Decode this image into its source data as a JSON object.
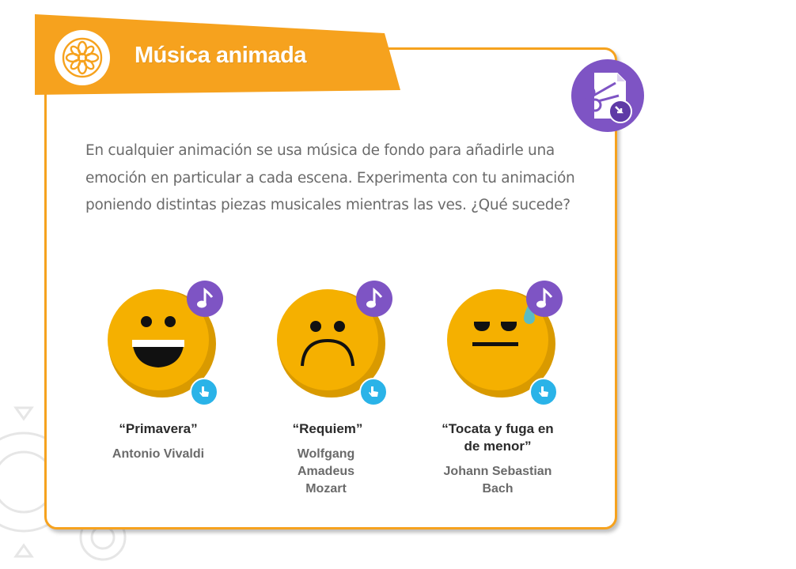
{
  "activity": {
    "title": "Música animada",
    "logo_icon": "flower-mandala-icon",
    "tool_icon": "scissors-document-icon",
    "intro": "En cualquier animación se usa música de fondo para añadirle una emoción en particular a cada escena. Experimenta con tu animación poniendo distintas piezas musicales mientras las ves. ¿Qué sucede?"
  },
  "pieces": [
    {
      "title": "“Primavera”",
      "composer": "Antonio Vivaldi",
      "face": "happy-face-icon",
      "mood": "happy"
    },
    {
      "title": "“Requiem”",
      "composer": "Wolfgang Amadeus Mozart",
      "face": "sad-face-icon",
      "mood": "sad"
    },
    {
      "title": "“Tocata y fuga en de menor”",
      "composer": "Johann Sebastian Bach",
      "face": "sweat-face-icon",
      "mood": "bored"
    }
  ],
  "badges": {
    "music_icon": "music-note-icon",
    "touch_icon": "tap-hand-icon"
  },
  "colors": {
    "accent_orange": "#f6a21e",
    "face_yellow": "#f5b000",
    "purple": "#7e54c4",
    "touch_blue": "#2ab3e8",
    "text_gray": "#6b6b6b"
  }
}
